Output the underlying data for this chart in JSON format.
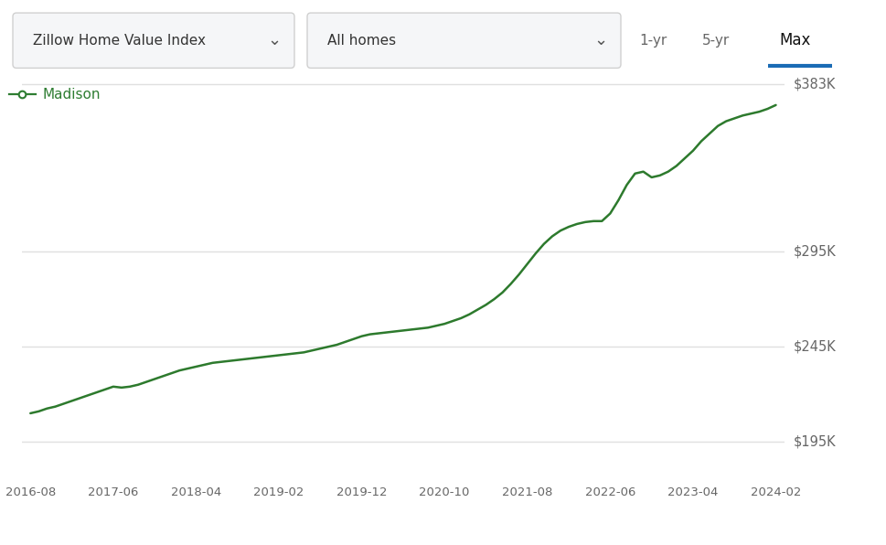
{
  "line_color": "#2d7a2d",
  "background_color": "#ffffff",
  "legend_label": "Madison",
  "legend_marker_color": "#2e7d32",
  "ytick_labels": [
    "$195K",
    "$245K",
    "$295K",
    "$383K"
  ],
  "ytick_values": [
    195000,
    245000,
    295000,
    383000
  ],
  "ylim": [
    178000,
    400000
  ],
  "xtick_labels": [
    "2016-08",
    "2017-06",
    "2018-04",
    "2019-02",
    "2019-12",
    "2020-10",
    "2021-08",
    "2022-06",
    "2023-04",
    "2024-02"
  ],
  "grid_color": "#e0e0e0",
  "ui_box_color": "#f5f6f8",
  "ui_box_border": "#d0d0d0",
  "header_text1": "Zillow Home Value Index",
  "header_text2": "All homes",
  "header_btn1": "1-yr",
  "header_btn2": "5-yr",
  "header_btn3": "Max",
  "max_underline_color": "#1a6bb5",
  "data_x": [
    0,
    1,
    2,
    3,
    4,
    5,
    6,
    7,
    8,
    9,
    10,
    11,
    12,
    13,
    14,
    15,
    16,
    17,
    18,
    19,
    20,
    21,
    22,
    23,
    24,
    25,
    26,
    27,
    28,
    29,
    30,
    31,
    32,
    33,
    34,
    35,
    36,
    37,
    38,
    39,
    40,
    41,
    42,
    43,
    44,
    45,
    46,
    47,
    48,
    49,
    50,
    51,
    52,
    53,
    54,
    55,
    56,
    57,
    58,
    59,
    60,
    61,
    62,
    63,
    64,
    65,
    66,
    67,
    68,
    69,
    70,
    71,
    72,
    73,
    74,
    75,
    76,
    77,
    78,
    79,
    80,
    81,
    82,
    83,
    84,
    85,
    86,
    87,
    88,
    89,
    90
  ],
  "data_y": [
    210000,
    211000,
    212500,
    213500,
    215000,
    216500,
    218000,
    219500,
    221000,
    222500,
    224000,
    223500,
    224000,
    225000,
    226500,
    228000,
    229500,
    231000,
    232500,
    233500,
    234500,
    235500,
    236500,
    237000,
    237500,
    238000,
    238500,
    239000,
    239500,
    240000,
    240500,
    241000,
    241500,
    242000,
    243000,
    244000,
    245000,
    246000,
    247500,
    249000,
    250500,
    251500,
    252000,
    252500,
    253000,
    253500,
    254000,
    254500,
    255000,
    256000,
    257000,
    258500,
    260000,
    262000,
    264500,
    267000,
    270000,
    273500,
    278000,
    283000,
    288500,
    294000,
    299000,
    303000,
    306000,
    308000,
    309500,
    310500,
    311000,
    311000,
    315000,
    322000,
    330000,
    336000,
    337000,
    334000,
    335000,
    337000,
    340000,
    344000,
    348000,
    353000,
    357000,
    361000,
    363500,
    365000,
    366500,
    367500,
    368500,
    370000,
    372000
  ]
}
